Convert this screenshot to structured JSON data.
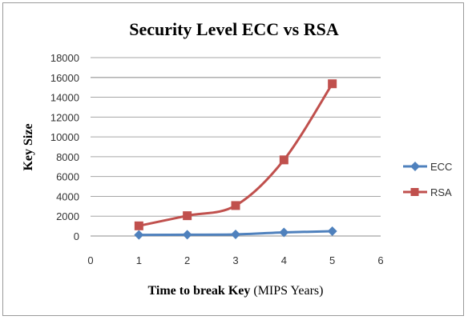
{
  "chart_data": {
    "type": "scatter",
    "title": "Security Level ECC vs RSA",
    "xlabel_bold": "Time to break Key",
    "xlabel_normal": " (MIPS Years)",
    "ylabel": "Key Size",
    "xlim": [
      0,
      6
    ],
    "ylim": [
      0,
      18000
    ],
    "x_ticks": [
      0,
      1,
      2,
      3,
      4,
      5,
      6
    ],
    "y_ticks": [
      0,
      2000,
      4000,
      6000,
      8000,
      10000,
      12000,
      14000,
      16000,
      18000
    ],
    "grid": "horizontal",
    "legend_position": "right",
    "series": [
      {
        "name": "ECC",
        "x": [
          1,
          2,
          3,
          4,
          5
        ],
        "values": [
          106,
          132,
          160,
          360,
          480
        ],
        "color": "#4f81bd",
        "marker": "diamond"
      },
      {
        "name": "RSA",
        "x": [
          1,
          2,
          3,
          4,
          5
        ],
        "values": [
          1024,
          2048,
          3072,
          7680,
          15360
        ],
        "color": "#c0504d",
        "marker": "square"
      }
    ]
  }
}
